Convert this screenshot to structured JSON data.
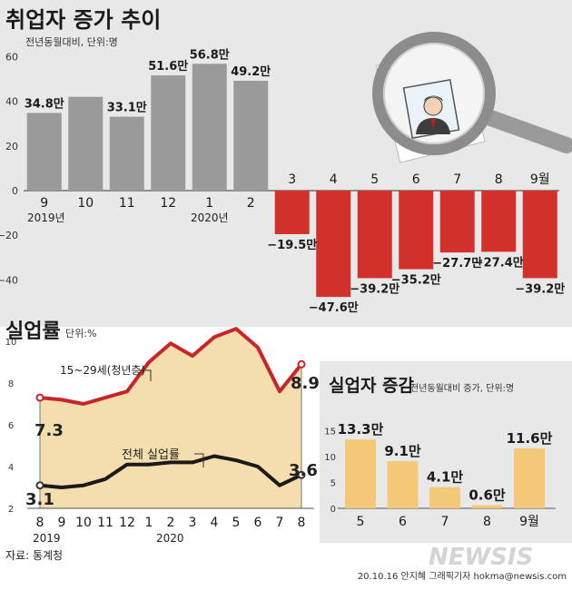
{
  "colors": {
    "panel_bg": "#e8e8e8",
    "bar_positive": "#9a9a9a",
    "bar_negative": "#d2302a",
    "youth_line": "#c8242a",
    "total_line": "#1a1a1a",
    "youth_fill": "#f5deae",
    "change_bar": "#f3c877"
  },
  "chart_data": [
    {
      "type": "bar",
      "title": "취업자 증가 추이",
      "subtitle": "전년동월대비, 단위:명",
      "categories": [
        "9",
        "10",
        "11",
        "12",
        "1",
        "2",
        "3",
        "4",
        "5",
        "6",
        "7",
        "8",
        "9월"
      ],
      "year_labels": [
        "2019년",
        "2020년"
      ],
      "values": [
        34.8,
        42.0,
        33.1,
        51.6,
        56.8,
        49.2,
        -19.5,
        -47.6,
        -39.2,
        -35.2,
        -27.7,
        -27.4,
        -39.2
      ],
      "data_labels": [
        "34.8만",
        "",
        "33.1만",
        "51.6만",
        "56.8만",
        "49.2만",
        "−19.5만",
        "−47.6만",
        "−39.2만",
        "−35.2만",
        "−27.7만",
        "−27.4만",
        "−39.2만"
      ],
      "ylim": [
        -50,
        60
      ],
      "yticks": [
        60,
        40,
        20,
        0,
        -20,
        -40
      ],
      "ytick_labels": [
        "60",
        "40",
        "20",
        "0",
        "−20",
        "−40"
      ],
      "grid": false
    },
    {
      "type": "line",
      "title": "실업률",
      "subtitle": "단위:%",
      "x": [
        "8",
        "9",
        "10",
        "11",
        "12",
        "1",
        "2",
        "3",
        "4",
        "5",
        "6",
        "7",
        "8"
      ],
      "year_labels": [
        "2019",
        "2020"
      ],
      "series": [
        {
          "name": "15~29세(청년층)",
          "values": [
            7.3,
            7.2,
            7.0,
            7.3,
            7.6,
            9.0,
            9.9,
            9.3,
            10.2,
            10.6,
            9.7,
            7.6,
            8.9
          ]
        },
        {
          "name": "전체 실업률",
          "values": [
            3.1,
            3.0,
            3.1,
            3.4,
            4.1,
            4.1,
            4.2,
            4.2,
            4.5,
            4.3,
            4.0,
            3.1,
            3.6
          ]
        }
      ],
      "point_labels": {
        "start_youth": "7.3",
        "end_youth": "8.9",
        "start_total": "3.1",
        "end_total": "3.6"
      },
      "ylim": [
        2,
        11
      ],
      "yticks": [
        10,
        8,
        6,
        4,
        2
      ],
      "ytick_labels": [
        "10",
        "8",
        "6",
        "4",
        "2"
      ]
    },
    {
      "type": "bar",
      "title": "실업자 증감",
      "subtitle": "전년동월대비 증가, 단위:명",
      "categories": [
        "5",
        "6",
        "7",
        "8",
        "9월"
      ],
      "values": [
        13.3,
        9.1,
        4.1,
        0.6,
        11.6
      ],
      "data_labels": [
        "13.3만",
        "9.1만",
        "4.1만",
        "0.6만",
        "11.6만"
      ],
      "ylim": [
        0,
        15
      ],
      "yticks": [
        15,
        10,
        5,
        0
      ],
      "ytick_labels": [
        "15",
        "10",
        "5",
        "0"
      ]
    }
  ],
  "footer": {
    "source": "자료: 통계청",
    "credit": "20.10.16 안지혜 그래픽기자 hokma@newsis.com",
    "watermark": "NEWSIS"
  }
}
